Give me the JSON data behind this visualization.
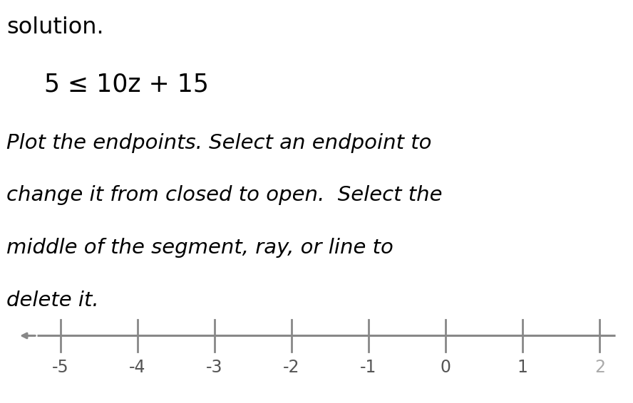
{
  "title_text": "solution.",
  "equation": "5 ≤ 10z + 15",
  "instruction_line1": "Plot the endpoints. Select an endpoint to",
  "instruction_line2": "change it from closed to open.  Select the",
  "instruction_line3": "middle of the segment, ray, or line to",
  "instruction_line4": "delete it.",
  "number_line_min": -5.7,
  "number_line_max": 2.35,
  "tick_positions": [
    -5,
    -4,
    -3,
    -2,
    -1,
    0,
    1,
    2
  ],
  "tick_labels": [
    "-5",
    "-4",
    "-3",
    "-2",
    "-1",
    "0",
    "1",
    "2"
  ],
  "tick_label_colors": [
    "#555555",
    "#555555",
    "#555555",
    "#555555",
    "#555555",
    "#555555",
    "#555555",
    "#aaaaaa"
  ],
  "axis_color": "#888888",
  "text_color": "#000000",
  "background_color": "#ffffff",
  "equation_fontsize": 25,
  "instruction_fontsize": 21,
  "title_fontsize": 23,
  "tick_label_fontsize": 17,
  "fig_width": 8.88,
  "fig_height": 5.66,
  "dpi": 100
}
